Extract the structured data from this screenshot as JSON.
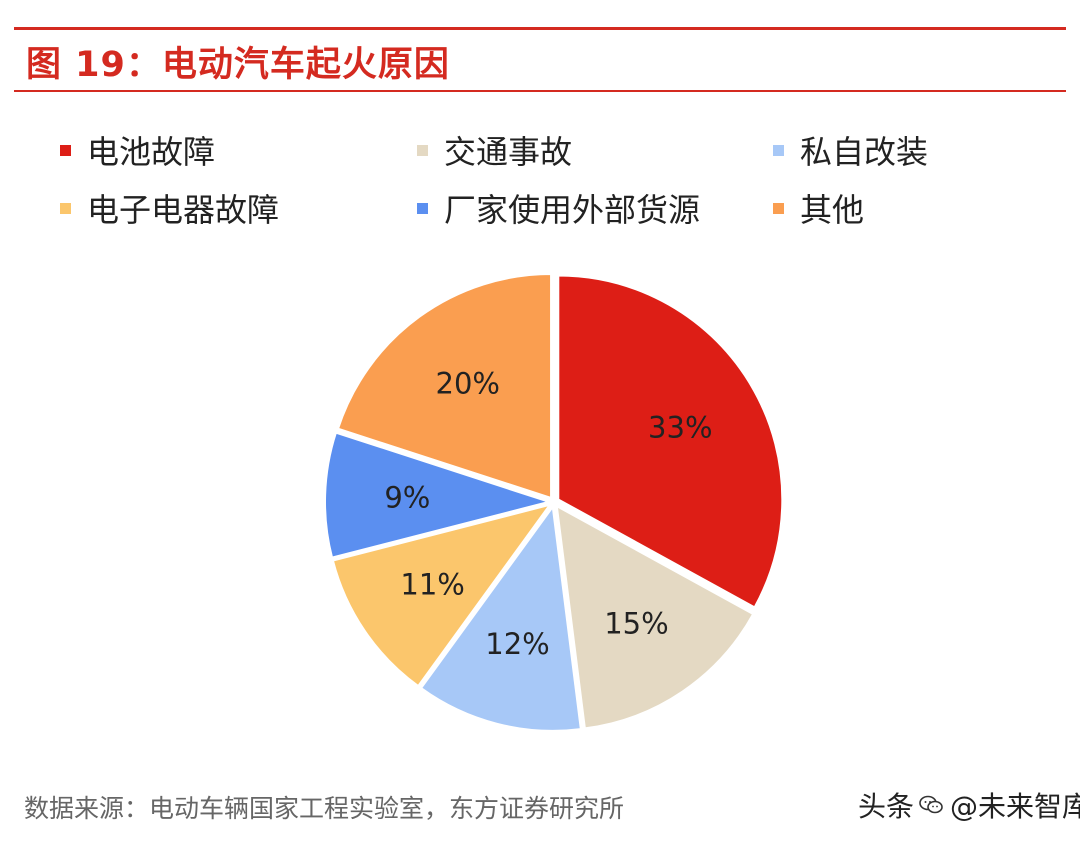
{
  "figure": {
    "title": "图 19：电动汽车起火原因",
    "source": "数据来源：电动车辆国家工程实验室，东方证券研究所",
    "watermark_prefix": "头条",
    "watermark_account": "@未来智库"
  },
  "chart_data": {
    "type": "pie",
    "title": "图 19：电动汽车起火原因",
    "legend_position": "top",
    "slices": [
      {
        "name": "电池故障",
        "value": 33,
        "label": "33%",
        "color": "#dd1e16"
      },
      {
        "name": "交通事故",
        "value": 15,
        "label": "15%",
        "color": "#e4d9c3"
      },
      {
        "name": "私自改装",
        "value": 12,
        "label": "12%",
        "color": "#a7c8f7"
      },
      {
        "name": "电子电器故障",
        "value": 11,
        "label": "11%",
        "color": "#fbc66c"
      },
      {
        "name": "厂家使用外部货源",
        "value": 9,
        "label": "9%",
        "color": "#5b8ff0"
      },
      {
        "name": "其他",
        "value": 20,
        "label": "20%",
        "color": "#fa9e50"
      }
    ]
  },
  "colors": {
    "accent": "#d42a20"
  }
}
